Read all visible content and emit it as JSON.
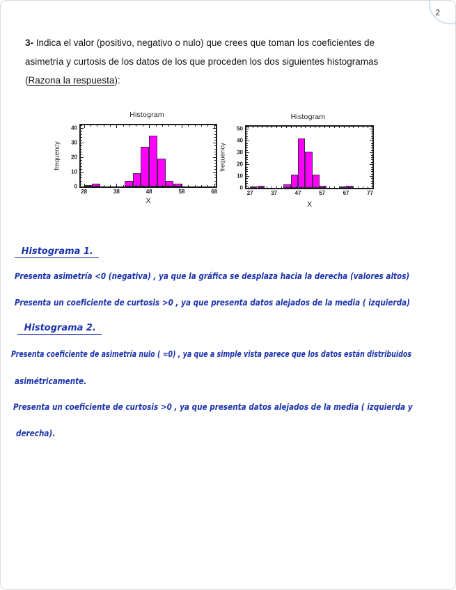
{
  "page": {
    "number": "2"
  },
  "question": {
    "number": "3-",
    "line1": " Indica el valor (positivo, negativo o nulo) que crees que toman los coeficientes de",
    "line2": "asimetría y curtosis de los datos de los que proceden los dos siguientes histogramas",
    "line3_open": "(",
    "line3_underlined": "Razona la respuesta",
    "line3_close": "):"
  },
  "chart_data": [
    {
      "type": "bar",
      "title": "Histogram",
      "xlabel": "X",
      "ylabel": "frequency",
      "x_range": [
        27,
        68.5
      ],
      "y_range": [
        0,
        42
      ],
      "x_ticks": [
        28,
        38,
        48,
        58,
        68
      ],
      "y_ticks": [
        0,
        10,
        20,
        30,
        40
      ],
      "x_minor_step": 2,
      "y_minor_step": 2,
      "grid": false,
      "bar_color": "#FF00FF",
      "bar_edge": "#41294d",
      "bars": [
        {
          "x0": 28,
          "x1": 30.5,
          "height": 1
        },
        {
          "x0": 30.5,
          "x1": 33,
          "height": 2
        },
        {
          "x0": 40.5,
          "x1": 43,
          "height": 4
        },
        {
          "x0": 43,
          "x1": 45.5,
          "height": 9
        },
        {
          "x0": 45.5,
          "x1": 48,
          "height": 27
        },
        {
          "x0": 48,
          "x1": 50.5,
          "height": 35
        },
        {
          "x0": 50.5,
          "x1": 53,
          "height": 19
        },
        {
          "x0": 53,
          "x1": 55.5,
          "height": 4
        },
        {
          "x0": 55.5,
          "x1": 58,
          "height": 2
        }
      ]
    },
    {
      "type": "bar",
      "title": "Histogram",
      "xlabel": "X",
      "ylabel": "frequency",
      "x_range": [
        25.5,
        78
      ],
      "y_range": [
        0,
        52
      ],
      "x_ticks": [
        27,
        37,
        47,
        57,
        67,
        77
      ],
      "y_ticks": [
        0,
        10,
        20,
        30,
        40,
        50
      ],
      "x_minor_step": 2,
      "y_minor_step": 2,
      "grid": false,
      "bar_color": "#FF00FF",
      "bar_edge": "#41294d",
      "bars": [
        {
          "x0": 27,
          "x1": 30,
          "height": 1
        },
        {
          "x0": 30,
          "x1": 33,
          "height": 2
        },
        {
          "x0": 41,
          "x1": 44,
          "height": 3
        },
        {
          "x0": 44,
          "x1": 47,
          "height": 11
        },
        {
          "x0": 47,
          "x1": 50,
          "height": 42
        },
        {
          "x0": 50,
          "x1": 53,
          "height": 31
        },
        {
          "x0": 53,
          "x1": 56,
          "height": 11
        },
        {
          "x0": 56,
          "x1": 59,
          "height": 2
        },
        {
          "x0": 64,
          "x1": 67,
          "height": 1
        },
        {
          "x0": 67,
          "x1": 70,
          "height": 2
        }
      ]
    }
  ],
  "answers": {
    "heading1": "Histograma 1.",
    "h1_line1": "Presenta asimetría <0 (negativa) , ya que la gráfica se desplaza hacia la derecha (valores altos)",
    "h1_line2": "Presenta un coeficiente de curtosis >0 , ya que presenta datos alejados de la media ( izquierda)",
    "heading2": "Histograma 2.",
    "h2_line1": "Presenta coeficiente de asimetría nulo ( ≈0) , ya que a simple vista parece que los datos están distribuidos",
    "h2_line2": "asimétricamente.",
    "h2_line3": "Presenta un coeficiente de curtosis >0 , ya que presenta datos alejados de la media ( izquierda y",
    "h2_line4": "derecha)."
  },
  "colors": {
    "bar_fill": "#FF00FF",
    "handwriting_ink": "#1c34ae",
    "print_text": "#141414"
  }
}
